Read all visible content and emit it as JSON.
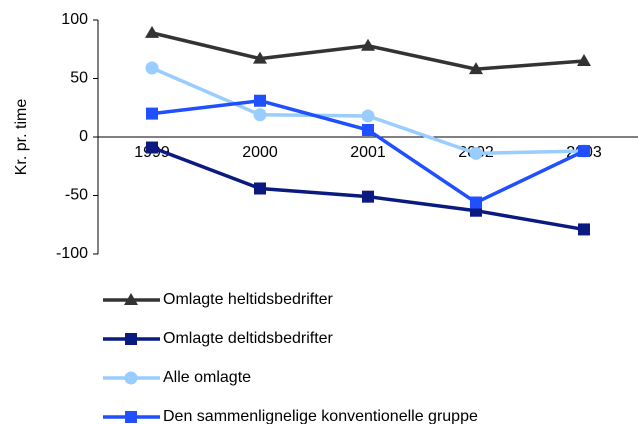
{
  "chart_data": {
    "type": "line",
    "ylabel": "Kr. pr. time",
    "categories": [
      "1999",
      "2000",
      "2001",
      "2002",
      "2003"
    ],
    "ylim": [
      -100,
      100
    ],
    "yticks": [
      -100,
      -50,
      0,
      50,
      100
    ],
    "series": [
      {
        "name": "Omlagte heltidsbedrifter",
        "color": "#333333",
        "marker": "triangle",
        "values": [
          89,
          67,
          78,
          58,
          65
        ]
      },
      {
        "name": "Omlagte deltidsbedrifter",
        "color": "#0a1a80",
        "marker": "square",
        "values": [
          -9,
          -44,
          -51,
          -63,
          -79
        ]
      },
      {
        "name": "Alle omlagte",
        "color": "#99ccff",
        "marker": "circle",
        "values": [
          59,
          19,
          18,
          -14,
          -12
        ]
      },
      {
        "name": "Den sammenlignelige konventionelle gruppe",
        "color": "#1f4fff",
        "marker": "square",
        "values": [
          20,
          31,
          6,
          -56,
          -12
        ]
      }
    ]
  }
}
